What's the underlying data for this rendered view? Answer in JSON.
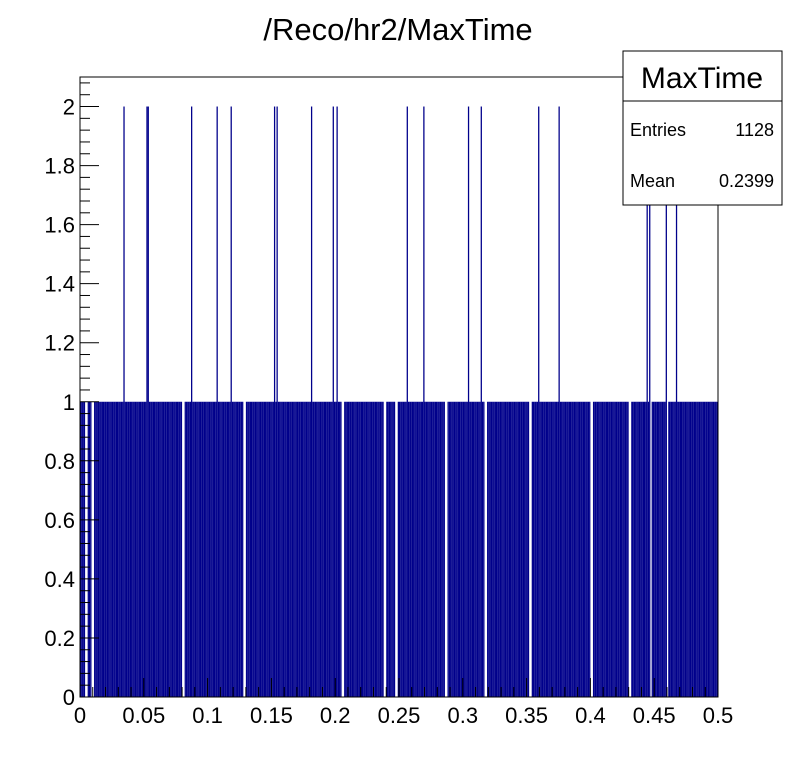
{
  "chart_data": {
    "type": "bar",
    "title": "/Reco/hr2/MaxTime",
    "xlabel": "",
    "ylabel": "",
    "xlim": [
      0,
      0.5
    ],
    "ylim": [
      0,
      2.1
    ],
    "x_ticks": [
      "0",
      "0.05",
      "0.1",
      "0.15",
      "0.2",
      "0.25",
      "0.3",
      "0.35",
      "0.4",
      "0.45",
      "0.5"
    ],
    "y_ticks": [
      "0",
      "0.2",
      "0.4",
      "0.6",
      "0.8",
      "1",
      "1.2",
      "1.4",
      "1.6",
      "1.8",
      "2"
    ],
    "bin_count": 500,
    "bin_width": 0.001,
    "bar_color": "#00008b",
    "grid": false,
    "legend": "none",
    "bins_with_count_2": [
      0.034,
      0.052,
      0.053,
      0.087,
      0.107,
      0.118,
      0.152,
      0.154,
      0.181,
      0.198,
      0.201,
      0.256,
      0.269,
      0.304,
      0.314,
      0.359,
      0.375,
      0.444,
      0.446,
      0.459,
      0.467
    ],
    "bins_with_count_1_ranges": [
      [
        0.0,
        0.004
      ],
      [
        0.006,
        0.009
      ],
      [
        0.011,
        0.08
      ],
      [
        0.082,
        0.128
      ],
      [
        0.13,
        0.205
      ],
      [
        0.207,
        0.238
      ],
      [
        0.24,
        0.247
      ],
      [
        0.249,
        0.286
      ],
      [
        0.288,
        0.317
      ],
      [
        0.319,
        0.352
      ],
      [
        0.354,
        0.4
      ],
      [
        0.402,
        0.43
      ],
      [
        0.432,
        0.446
      ],
      [
        0.448,
        0.459
      ],
      [
        0.461,
        0.5
      ]
    ],
    "stats_box": {
      "name": "MaxTime",
      "entries_label": "Entries",
      "entries_value": "1128",
      "mean_label": "Mean",
      "mean_value": "0.2399"
    }
  }
}
